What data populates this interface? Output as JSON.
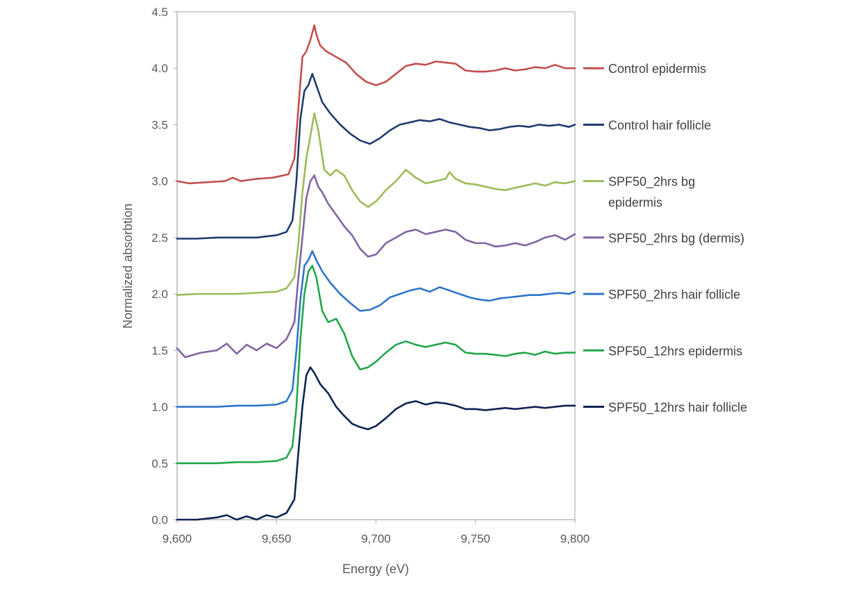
{
  "chart_data": {
    "type": "line",
    "title": "",
    "xlabel": "Energy (eV)",
    "ylabel": "Normalized absorbtion",
    "xlim": [
      9600,
      9800
    ],
    "ylim": [
      0,
      4.5
    ],
    "x_ticks": [
      "9,600",
      "9,650",
      "9,700",
      "9,750",
      "9,800"
    ],
    "x_tick_values": [
      9600,
      9650,
      9700,
      9750,
      9800
    ],
    "y_ticks": [
      "0.0",
      "0.5",
      "1.0",
      "1.5",
      "2.0",
      "2.5",
      "3.0",
      "3.5",
      "4.0",
      "4.5"
    ],
    "y_tick_values": [
      0,
      0.5,
      1.0,
      1.5,
      2.0,
      2.5,
      3.0,
      3.5,
      4.0,
      4.5
    ],
    "grid": false,
    "legend_position": "right",
    "series": [
      {
        "name": "Control epidermis",
        "label_lines": [
          "Control epidermis"
        ],
        "color": "#c0504d",
        "x": [
          9600,
          9606,
          9615,
          9624,
          9628,
          9632,
          9640,
          9648,
          9656,
          9659,
          9661,
          9663,
          9665,
          9667,
          9669,
          9670,
          9672,
          9675,
          9680,
          9685,
          9690,
          9695,
          9700,
          9705,
          9710,
          9715,
          9720,
          9725,
          9730,
          9735,
          9740,
          9745,
          9750,
          9755,
          9760,
          9765,
          9770,
          9775,
          9780,
          9785,
          9790,
          9795,
          9800
        ],
        "y": [
          3.0,
          2.98,
          2.99,
          3.0,
          3.03,
          3.0,
          3.02,
          3.03,
          3.06,
          3.2,
          3.65,
          4.1,
          4.15,
          4.25,
          4.38,
          4.3,
          4.2,
          4.15,
          4.1,
          4.05,
          3.95,
          3.88,
          3.85,
          3.88,
          3.95,
          4.02,
          4.04,
          4.03,
          4.06,
          4.05,
          4.04,
          3.98,
          3.97,
          3.97,
          3.98,
          4.0,
          3.98,
          3.99,
          4.01,
          4.0,
          4.03,
          4.0,
          4.0
        ]
      },
      {
        "name": "Control hair follicle",
        "label_lines": [
          "Control hair follicle"
        ],
        "color": "#1f3b6f",
        "x": [
          9600,
          9610,
          9620,
          9630,
          9640,
          9650,
          9655,
          9658,
          9660,
          9662,
          9664,
          9666,
          9668,
          9670,
          9673,
          9677,
          9682,
          9687,
          9692,
          9697,
          9702,
          9707,
          9712,
          9717,
          9722,
          9727,
          9732,
          9737,
          9742,
          9747,
          9752,
          9757,
          9762,
          9767,
          9772,
          9777,
          9782,
          9787,
          9792,
          9797,
          9800
        ],
        "y": [
          2.49,
          2.49,
          2.5,
          2.5,
          2.5,
          2.52,
          2.55,
          2.65,
          3.0,
          3.55,
          3.8,
          3.85,
          3.95,
          3.85,
          3.7,
          3.6,
          3.5,
          3.42,
          3.36,
          3.33,
          3.38,
          3.45,
          3.5,
          3.52,
          3.54,
          3.53,
          3.55,
          3.52,
          3.5,
          3.48,
          3.47,
          3.45,
          3.46,
          3.48,
          3.49,
          3.48,
          3.5,
          3.49,
          3.5,
          3.48,
          3.5
        ]
      },
      {
        "name": "SPF50_2hrs bg epidermis",
        "label_lines": [
          "SPF50_2hrs bg",
          "epidermis"
        ],
        "color": "#9bbb59",
        "x": [
          9600,
          9610,
          9620,
          9630,
          9640,
          9650,
          9655,
          9659,
          9661,
          9663,
          9665,
          9667,
          9669,
          9671,
          9674,
          9677,
          9680,
          9684,
          9688,
          9692,
          9696,
          9700,
          9705,
          9710,
          9715,
          9720,
          9725,
          9730,
          9735,
          9737,
          9740,
          9745,
          9750,
          9755,
          9760,
          9765,
          9770,
          9775,
          9780,
          9785,
          9790,
          9795,
          9800
        ],
        "y": [
          1.99,
          2.0,
          2.0,
          2.0,
          2.01,
          2.02,
          2.05,
          2.15,
          2.45,
          2.9,
          3.2,
          3.4,
          3.6,
          3.45,
          3.1,
          3.05,
          3.1,
          3.05,
          2.92,
          2.82,
          2.77,
          2.82,
          2.92,
          3.0,
          3.1,
          3.03,
          2.98,
          3.0,
          3.02,
          3.08,
          3.02,
          2.98,
          2.97,
          2.95,
          2.93,
          2.92,
          2.94,
          2.96,
          2.98,
          2.96,
          2.99,
          2.98,
          3.0
        ]
      },
      {
        "name": "SPF50_2hrs bg (dermis)",
        "label_lines": [
          "SPF50_2hrs bg (dermis)"
        ],
        "color": "#8064a2",
        "x": [
          9600,
          9604,
          9612,
          9620,
          9625,
          9630,
          9635,
          9640,
          9645,
          9650,
          9655,
          9659,
          9661,
          9663,
          9665,
          9667,
          9669,
          9671,
          9673,
          9676,
          9680,
          9684,
          9688,
          9692,
          9696,
          9700,
          9705,
          9710,
          9715,
          9720,
          9725,
          9730,
          9735,
          9740,
          9745,
          9750,
          9755,
          9760,
          9765,
          9770,
          9775,
          9780,
          9785,
          9790,
          9795,
          9800
        ],
        "y": [
          1.52,
          1.44,
          1.48,
          1.5,
          1.56,
          1.47,
          1.55,
          1.5,
          1.56,
          1.52,
          1.6,
          1.75,
          2.15,
          2.5,
          2.85,
          3.0,
          3.05,
          2.95,
          2.9,
          2.8,
          2.7,
          2.6,
          2.52,
          2.4,
          2.33,
          2.35,
          2.45,
          2.5,
          2.55,
          2.57,
          2.53,
          2.55,
          2.57,
          2.55,
          2.48,
          2.45,
          2.45,
          2.42,
          2.43,
          2.45,
          2.43,
          2.46,
          2.5,
          2.52,
          2.48,
          2.53
        ]
      },
      {
        "name": "SPF50_2hrs hair follicle",
        "label_lines": [
          "SPF50_2hrs hair follicle"
        ],
        "color": "#2e75c8",
        "x": [
          9600,
          9610,
          9620,
          9630,
          9640,
          9650,
          9655,
          9658,
          9660,
          9662,
          9664,
          9666,
          9668,
          9670,
          9673,
          9677,
          9682,
          9687,
          9692,
          9697,
          9702,
          9707,
          9712,
          9717,
          9722,
          9727,
          9732,
          9737,
          9742,
          9747,
          9752,
          9757,
          9762,
          9767,
          9772,
          9777,
          9782,
          9787,
          9792,
          9797,
          9800
        ],
        "y": [
          1.0,
          1.0,
          1.0,
          1.01,
          1.01,
          1.02,
          1.05,
          1.15,
          1.5,
          1.95,
          2.25,
          2.3,
          2.38,
          2.3,
          2.2,
          2.1,
          2.0,
          1.92,
          1.85,
          1.86,
          1.9,
          1.97,
          2.0,
          2.03,
          2.05,
          2.02,
          2.06,
          2.03,
          2.0,
          1.97,
          1.95,
          1.94,
          1.96,
          1.97,
          1.98,
          1.99,
          1.99,
          2.0,
          2.01,
          2.0,
          2.02
        ]
      },
      {
        "name": "SPF50_12hrs epidermis",
        "label_lines": [
          "SPF50_12hrs epidermis"
        ],
        "color": "#22a64a",
        "x": [
          9600,
          9610,
          9620,
          9630,
          9640,
          9650,
          9655,
          9658,
          9660,
          9662,
          9664,
          9666,
          9668,
          9670,
          9673,
          9676,
          9680,
          9684,
          9688,
          9692,
          9696,
          9700,
          9705,
          9710,
          9715,
          9720,
          9725,
          9730,
          9735,
          9740,
          9745,
          9750,
          9755,
          9760,
          9765,
          9770,
          9775,
          9780,
          9785,
          9790,
          9795,
          9800
        ],
        "y": [
          0.5,
          0.5,
          0.5,
          0.51,
          0.51,
          0.52,
          0.55,
          0.65,
          1.0,
          1.6,
          2.0,
          2.2,
          2.25,
          2.15,
          1.85,
          1.75,
          1.78,
          1.65,
          1.45,
          1.33,
          1.35,
          1.4,
          1.48,
          1.55,
          1.58,
          1.55,
          1.53,
          1.55,
          1.57,
          1.55,
          1.48,
          1.47,
          1.47,
          1.46,
          1.45,
          1.47,
          1.48,
          1.46,
          1.49,
          1.47,
          1.48,
          1.48
        ]
      },
      {
        "name": "SPF50_12hrs hair follicle",
        "label_lines": [
          "SPF50_12hrs hair follicle"
        ],
        "color": "#0e2352",
        "x": [
          9600,
          9610,
          9620,
          9625,
          9630,
          9635,
          9640,
          9645,
          9650,
          9655,
          9659,
          9661,
          9663,
          9665,
          9667,
          9669,
          9672,
          9676,
          9680,
          9684,
          9688,
          9692,
          9696,
          9700,
          9705,
          9710,
          9715,
          9720,
          9725,
          9730,
          9735,
          9740,
          9745,
          9750,
          9755,
          9760,
          9765,
          9770,
          9775,
          9780,
          9785,
          9790,
          9795,
          9800
        ],
        "y": [
          0.0,
          0.0,
          0.02,
          0.04,
          0.0,
          0.03,
          0.0,
          0.04,
          0.02,
          0.06,
          0.18,
          0.6,
          1.0,
          1.28,
          1.35,
          1.3,
          1.2,
          1.12,
          1.0,
          0.92,
          0.85,
          0.82,
          0.8,
          0.83,
          0.9,
          0.98,
          1.03,
          1.05,
          1.02,
          1.04,
          1.03,
          1.01,
          0.98,
          0.98,
          0.97,
          0.98,
          0.99,
          0.98,
          0.99,
          1.0,
          0.99,
          1.0,
          1.01,
          1.01
        ]
      }
    ]
  }
}
